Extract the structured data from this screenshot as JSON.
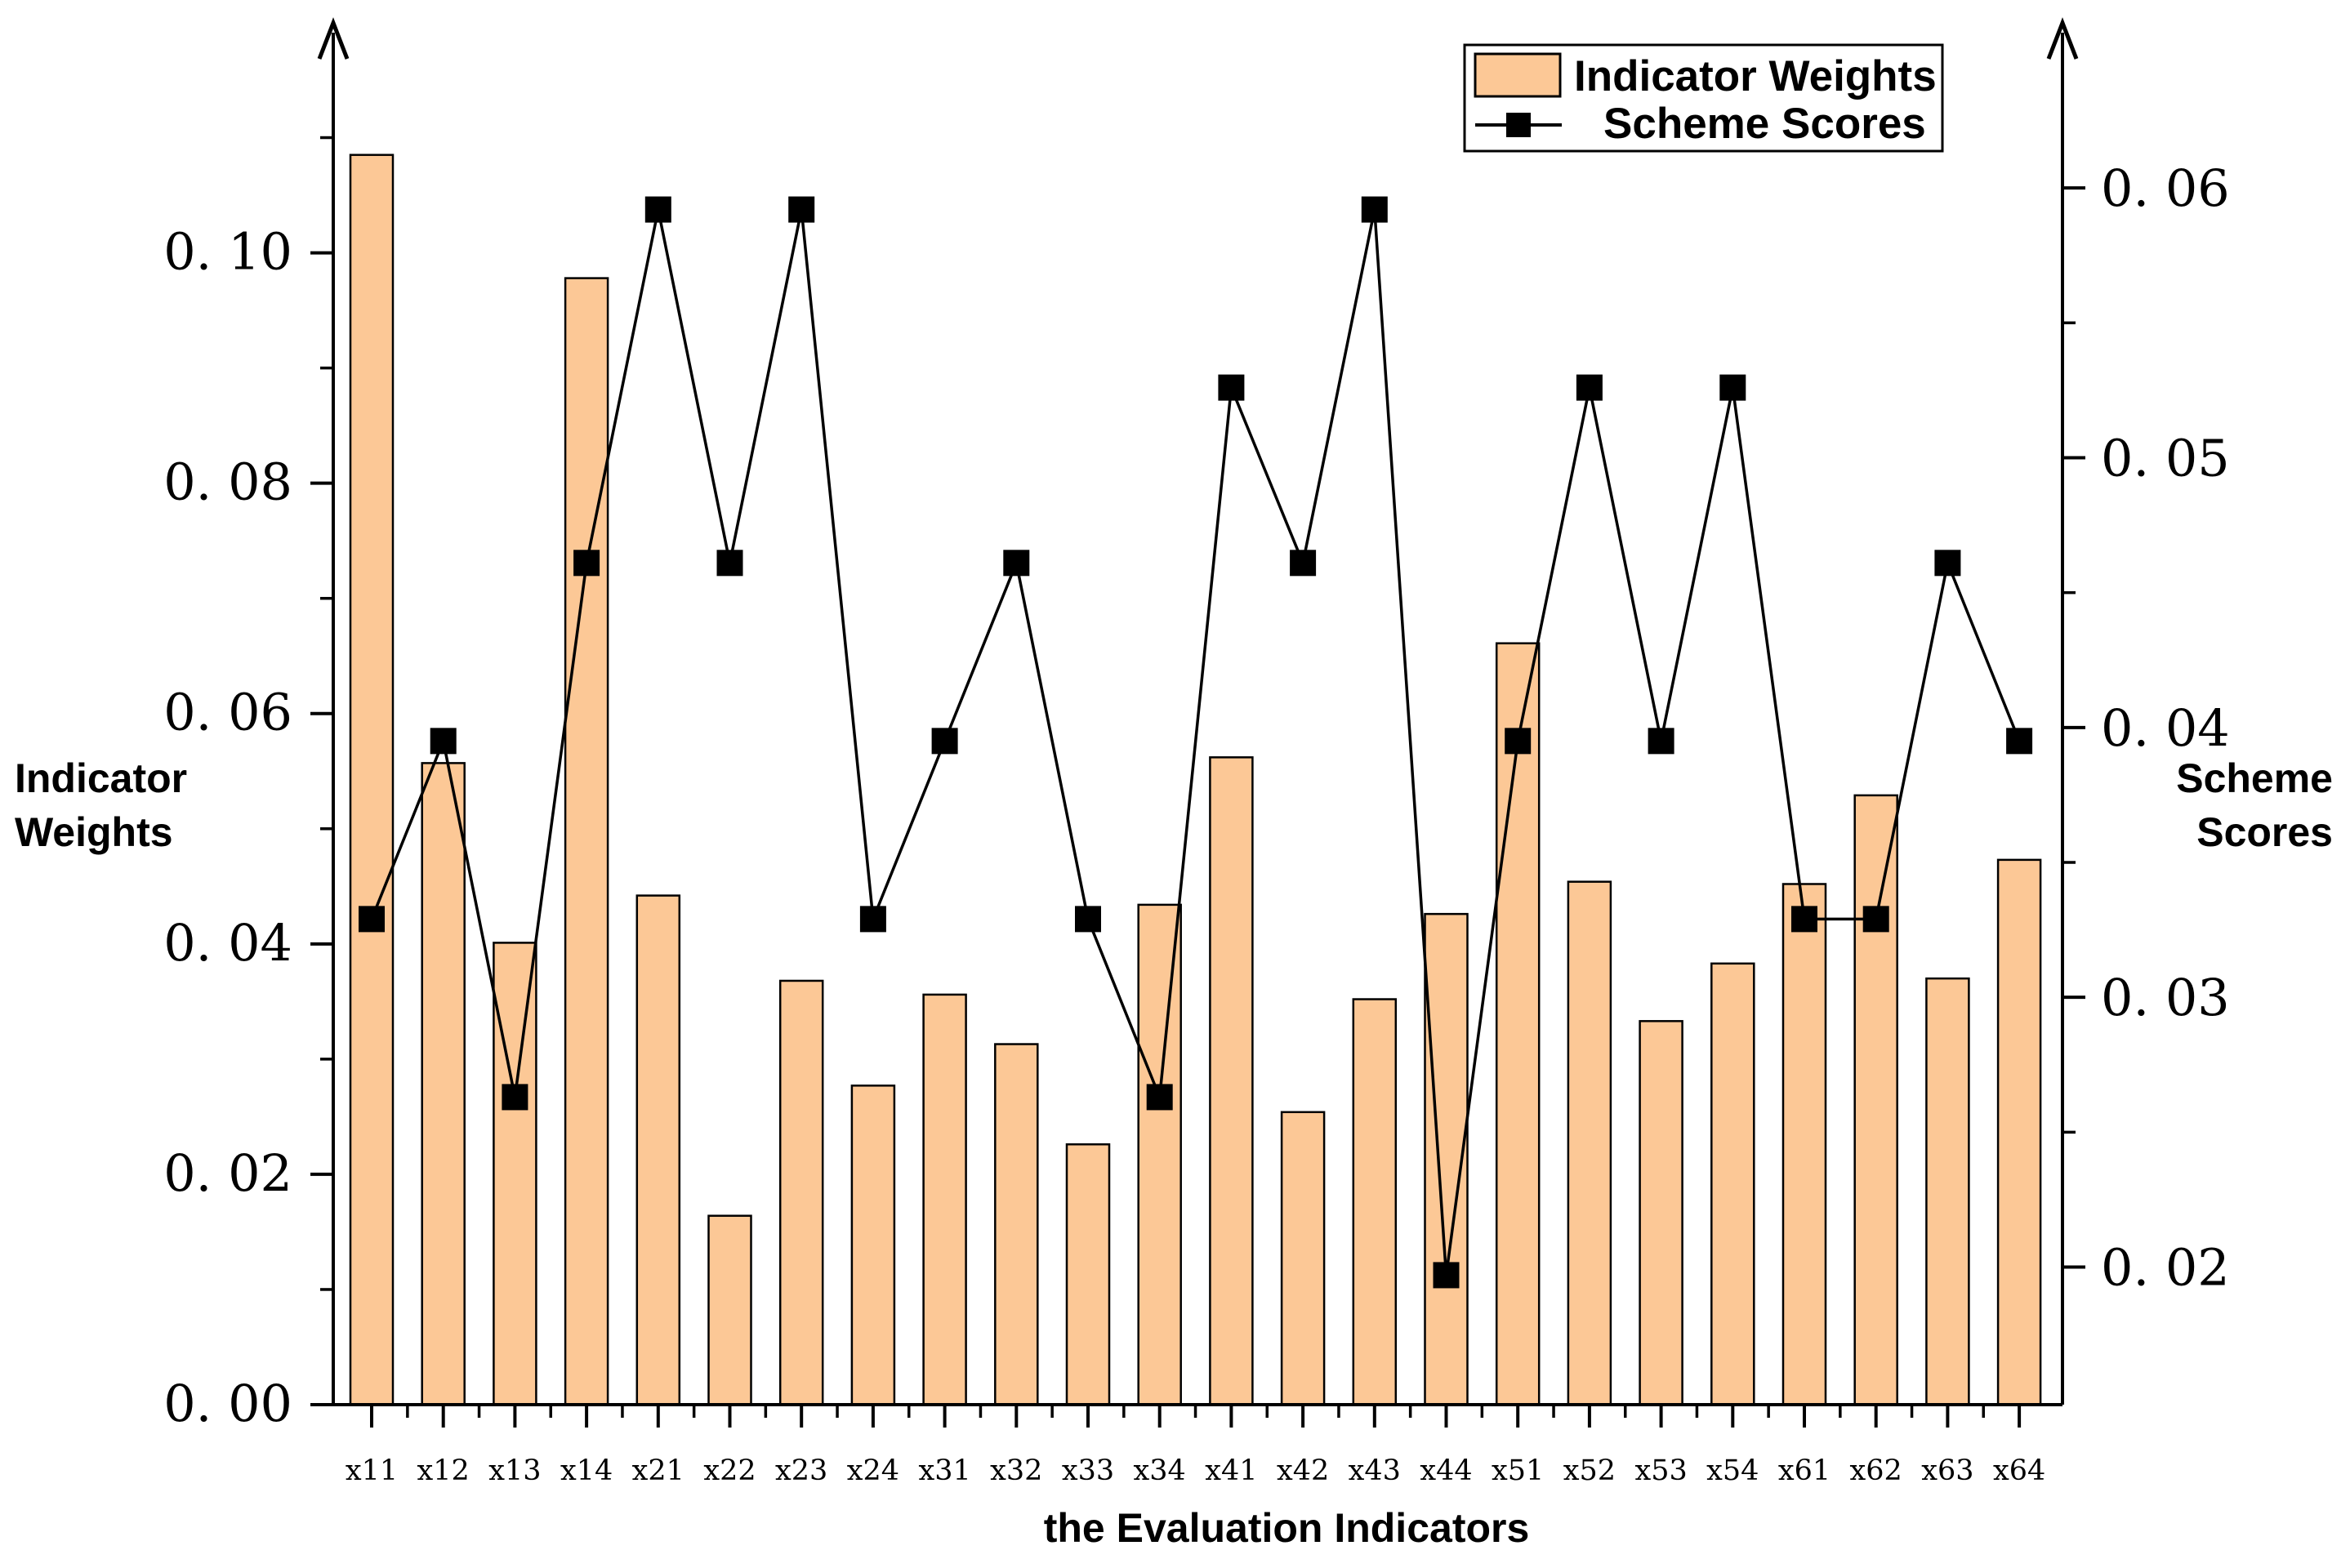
{
  "chart_data": {
    "type": "bar+line",
    "categories": [
      "x11",
      "x12",
      "x13",
      "x14",
      "x21",
      "x22",
      "x23",
      "x24",
      "x31",
      "x32",
      "x33",
      "x34",
      "x41",
      "x42",
      "x43",
      "x44",
      "x51",
      "x52",
      "x53",
      "x54",
      "x61",
      "x62",
      "x63",
      "x64"
    ],
    "series": [
      {
        "name": "Indicator Weights",
        "type": "bar",
        "axis": "left",
        "color": "#FCC896",
        "values": [
          0.1085,
          0.0557,
          0.0401,
          0.0978,
          0.0442,
          0.0164,
          0.0368,
          0.0277,
          0.0356,
          0.0313,
          0.0226,
          0.0434,
          0.0562,
          0.0254,
          0.0352,
          0.0426,
          0.0661,
          0.0454,
          0.0333,
          0.0383,
          0.0452,
          0.0529,
          0.037,
          0.0473
        ]
      },
      {
        "name": "Scheme Scores",
        "type": "line",
        "axis": "right",
        "color": "#000000",
        "values": [
          0.0329,
          0.0395,
          0.0263,
          0.0461,
          0.0592,
          0.0461,
          0.0592,
          0.0329,
          0.0395,
          0.0461,
          0.0329,
          0.0263,
          0.0526,
          0.0461,
          0.0592,
          0.0197,
          0.0395,
          0.0526,
          0.0395,
          0.0526,
          0.0329,
          0.0329,
          0.0461,
          0.0395
        ]
      }
    ],
    "xlabel": "the Evaluation Indicators",
    "ylabel": [
      "Indicator",
      "Weights"
    ],
    "y2label": [
      "Scheme",
      "Scores"
    ],
    "ylim": [
      0,
      0.115
    ],
    "y2lim": [
      0.0149,
      0.064
    ],
    "yticks": [
      "0.00",
      "0.02",
      "0.04",
      "0.06",
      "0.08",
      "0.10"
    ],
    "y2ticks": [
      "0.02",
      "0.03",
      "0.04",
      "0.05",
      "0.06"
    ],
    "legend": [
      "Indicator Weights",
      "Scheme Scores"
    ],
    "legend_position": "top-right"
  }
}
